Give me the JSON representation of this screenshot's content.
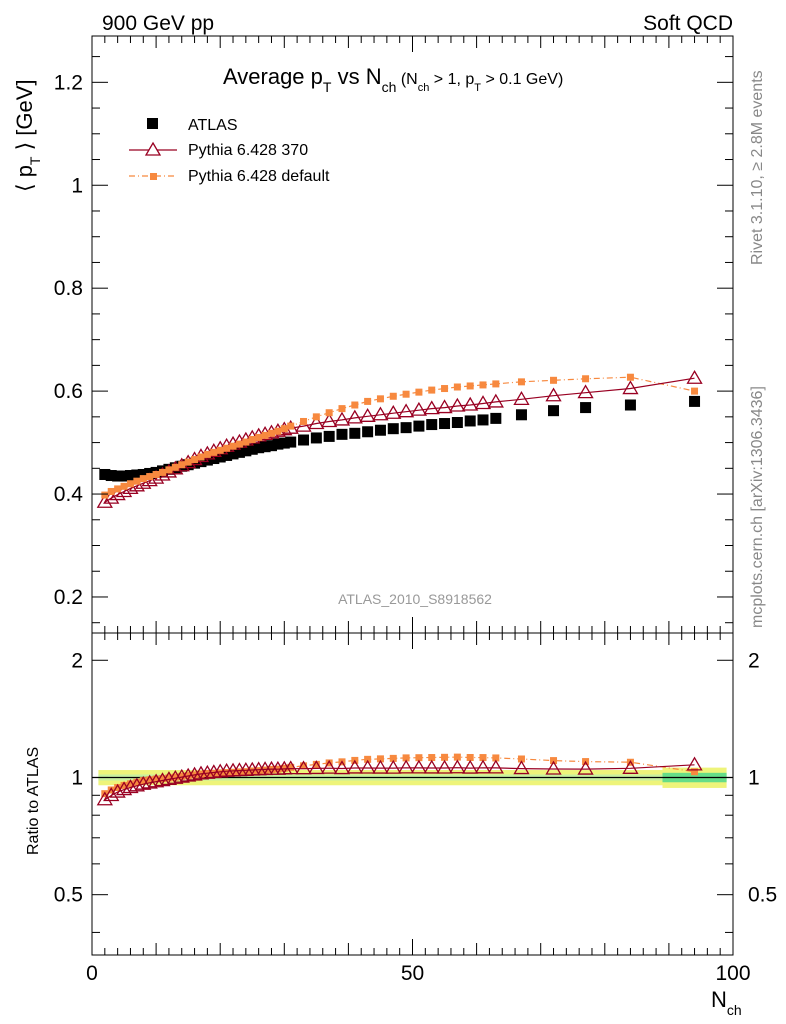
{
  "header": {
    "left": "900 GeV pp",
    "right": "Soft QCD"
  },
  "side_labels": {
    "rivet": "Rivet 3.1.10, ≥ 2.8M events",
    "mcplots": "mcplots.cern.ch [arXiv:1306.3436]"
  },
  "colors": {
    "atlas": "#000000",
    "pythia_370": "#990022",
    "pythia_default": "#f7893f",
    "band_inner": "#66dd88",
    "band_outer": "#eef47a",
    "band_mid": "#c8f0a0"
  },
  "chart_data": [
    {
      "type": "scatter",
      "title": "Average p_T vs N_ch (N_ch > 1, p_T > 0.1 GeV)",
      "title_parts": {
        "main_a": "Average p",
        "sub_a": "T",
        "main_b": " vs N",
        "sub_b": "ch",
        "small_a": " (N",
        "small_sub_a": "ch",
        "small_b": " > 1, p",
        "small_sub_b": "T",
        "small_c": " > 0.1 GeV)"
      },
      "ylabel": "⟨ p_T ⟩ [GeV]",
      "ylabel_parts": {
        "a": "⟨ p",
        "sub": "T",
        "b": " ⟩  [GeV]"
      },
      "watermark": "ATLAS_2010_S8918562",
      "xlim": [
        0,
        100
      ],
      "ylim": [
        0.13,
        1.29
      ],
      "yticks": [
        0.2,
        0.4,
        0.6,
        0.8,
        1,
        1.2
      ],
      "ytick_labels": [
        "0.2",
        "0.4",
        "0.6",
        "0.8",
        "1",
        "1.2"
      ],
      "legend_position": "top-left",
      "series": [
        {
          "name": "ATLAS",
          "marker": "filled-square",
          "x": [
            2,
            3,
            4,
            5,
            6,
            7,
            8,
            9,
            10,
            11,
            12,
            13,
            14,
            15,
            16,
            17,
            18,
            19,
            20,
            21,
            22,
            23,
            24,
            25,
            26,
            27,
            28,
            29,
            30,
            31,
            33,
            35,
            37,
            39,
            41,
            43,
            45,
            47,
            49,
            51,
            53,
            55,
            57,
            59,
            61,
            63,
            67,
            72,
            77,
            84,
            94
          ],
          "y": [
            0.438,
            0.436,
            0.435,
            0.435,
            0.436,
            0.437,
            0.438,
            0.44,
            0.442,
            0.445,
            0.448,
            0.451,
            0.454,
            0.457,
            0.46,
            0.463,
            0.466,
            0.469,
            0.472,
            0.475,
            0.478,
            0.481,
            0.484,
            0.487,
            0.49,
            0.492,
            0.494,
            0.497,
            0.499,
            0.501,
            0.505,
            0.509,
            0.512,
            0.516,
            0.518,
            0.521,
            0.524,
            0.527,
            0.529,
            0.532,
            0.535,
            0.537,
            0.539,
            0.542,
            0.544,
            0.547,
            0.554,
            0.562,
            0.568,
            0.573,
            0.58
          ]
        },
        {
          "name": "Pythia 6.428 370",
          "marker": "open-triangle",
          "x": [
            2,
            3,
            4,
            5,
            6,
            7,
            8,
            9,
            10,
            11,
            12,
            13,
            14,
            15,
            16,
            17,
            18,
            19,
            20,
            21,
            22,
            23,
            24,
            25,
            26,
            27,
            28,
            29,
            30,
            31,
            33,
            35,
            37,
            39,
            41,
            43,
            45,
            47,
            49,
            51,
            53,
            55,
            57,
            59,
            61,
            63,
            67,
            72,
            77,
            84,
            94
          ],
          "y": [
            0.384,
            0.392,
            0.399,
            0.405,
            0.411,
            0.416,
            0.421,
            0.426,
            0.431,
            0.437,
            0.443,
            0.449,
            0.455,
            0.461,
            0.467,
            0.473,
            0.478,
            0.483,
            0.488,
            0.493,
            0.497,
            0.501,
            0.505,
            0.509,
            0.513,
            0.516,
            0.519,
            0.522,
            0.525,
            0.528,
            0.532,
            0.537,
            0.541,
            0.544,
            0.548,
            0.551,
            0.554,
            0.557,
            0.56,
            0.563,
            0.566,
            0.568,
            0.571,
            0.573,
            0.576,
            0.579,
            0.584,
            0.591,
            0.597,
            0.605,
            0.625
          ]
        },
        {
          "name": "Pythia 6.428 default",
          "marker": "small-square",
          "x": [
            2,
            3,
            4,
            5,
            6,
            7,
            8,
            9,
            10,
            11,
            12,
            13,
            14,
            15,
            16,
            17,
            18,
            19,
            20,
            21,
            22,
            23,
            24,
            25,
            26,
            27,
            28,
            29,
            30,
            31,
            33,
            35,
            37,
            39,
            41,
            43,
            45,
            47,
            49,
            51,
            53,
            55,
            57,
            59,
            61,
            63,
            67,
            72,
            77,
            84,
            94
          ],
          "y": [
            0.398,
            0.405,
            0.41,
            0.415,
            0.42,
            0.425,
            0.43,
            0.434,
            0.438,
            0.442,
            0.447,
            0.452,
            0.457,
            0.462,
            0.467,
            0.472,
            0.477,
            0.481,
            0.485,
            0.489,
            0.493,
            0.497,
            0.501,
            0.506,
            0.51,
            0.514,
            0.518,
            0.522,
            0.527,
            0.532,
            0.541,
            0.55,
            0.558,
            0.566,
            0.573,
            0.58,
            0.585,
            0.59,
            0.594,
            0.598,
            0.602,
            0.605,
            0.608,
            0.61,
            0.612,
            0.614,
            0.618,
            0.621,
            0.624,
            0.627,
            0.6
          ]
        }
      ]
    },
    {
      "type": "scatter",
      "ylabel": "Ratio to ATLAS",
      "xlabel": "N_ch",
      "xlabel_parts": {
        "main": "N",
        "sub": "ch"
      },
      "xlim": [
        0,
        100
      ],
      "ylim": [
        0.35,
        2.35
      ],
      "xticks": [
        0,
        50,
        100
      ],
      "xtick_labels": [
        "0",
        "50",
        "100"
      ],
      "yticks": [
        0.5,
        1,
        2
      ],
      "ytick_labels": [
        "0.5",
        "1",
        "2"
      ],
      "reference_line": 1,
      "uncertainty_band": {
        "inner_halfwidth": 0.018,
        "outer_halfwidth": 0.045,
        "outer_halfwidth_high_x": 0.06
      },
      "series": [
        {
          "name": "Pythia 6.428 370",
          "marker": "open-triangle",
          "ratio_of": [
            1,
            0
          ]
        },
        {
          "name": "Pythia 6.428 default",
          "marker": "small-square",
          "ratio_of": [
            2,
            0
          ]
        }
      ]
    }
  ]
}
